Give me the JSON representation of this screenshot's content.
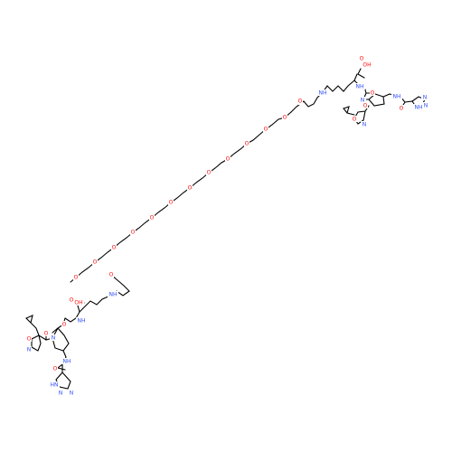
{
  "colors": {
    "background": "#ffffff",
    "bond": "#000000",
    "oxygen": "#ff0d0d",
    "nitrogen": "#3050f8"
  },
  "labels": {
    "oh_top": "OH",
    "o_acid_top": "O",
    "nh_alpha_top": "NH",
    "o_amide_top": "O",
    "n_pro_top": "N",
    "o_acyl_top": "O",
    "nh_4_top": "NH",
    "o_triazole_top": "O",
    "nh_triazole_top": "NH",
    "n1_triazole_top": "N",
    "n2_triazole_top": "N",
    "o_isox_top": "O",
    "n_isox_top": "N",
    "nh_lys_top": "NH",
    "o_peg_amide_top": "O",
    "peg_o1": "O",
    "peg_o2": "O",
    "peg_o3": "O",
    "peg_o4": "O",
    "peg_o5": "O",
    "peg_o6": "O",
    "peg_o7": "O",
    "peg_o8": "O",
    "peg_o9": "O",
    "peg_o10": "O",
    "peg_o11": "O",
    "peg_o12": "O",
    "o_peg_amide_bot": "O",
    "nh_lys_bot": "NH",
    "oh_bot": "OH",
    "o_acid_bot": "O",
    "nh_alpha_bot": "NH",
    "o_amide_bot": "O",
    "n_pro_bot": "N",
    "o_acyl_bot": "O",
    "o_isox_bot": "O",
    "n_isox_bot": "N",
    "nh_4_bot": "NH",
    "o_triazole_bot": "O",
    "nh_triazole_bot": "HN",
    "n1_triazole_bot": "N",
    "n2_triazole_bot": "N"
  }
}
